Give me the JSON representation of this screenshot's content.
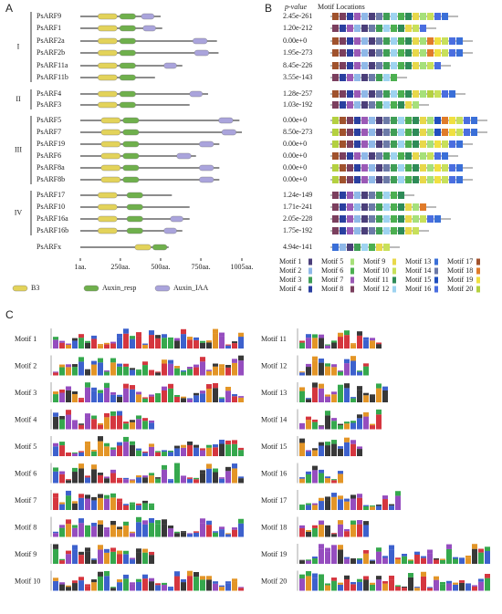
{
  "panel_a": {
    "label": "A",
    "groups": [
      {
        "label": "I",
        "genes": [
          {
            "name": "PsARF9",
            "length": 500,
            "domains": [
              [
                0,
                110,
                230
              ],
              [
                1,
                245,
                345
              ],
              [
                2,
                380,
                460
              ]
            ]
          },
          {
            "name": "PsARF1",
            "length": 510,
            "domains": [
              [
                0,
                110,
                230
              ],
              [
                1,
                245,
                345
              ],
              [
                2,
                390,
                470
              ]
            ]
          },
          {
            "name": "PsARF2a",
            "length": 850,
            "domains": [
              [
                0,
                110,
                230
              ],
              [
                1,
                245,
                345
              ],
              [
                2,
                700,
                790
              ]
            ]
          },
          {
            "name": "PsARF2b",
            "length": 860,
            "domains": [
              [
                0,
                110,
                230
              ],
              [
                1,
                245,
                345
              ],
              [
                2,
                710,
                800
              ]
            ]
          },
          {
            "name": "PsARF11a",
            "length": 635,
            "domains": [
              [
                0,
                110,
                230
              ],
              [
                1,
                245,
                345
              ],
              [
                2,
                520,
                600
              ]
            ]
          },
          {
            "name": "PsARF11b",
            "length": 465,
            "domains": [
              [
                0,
                110,
                230
              ],
              [
                1,
                245,
                345
              ]
            ]
          }
        ]
      },
      {
        "label": "II",
        "genes": [
          {
            "name": "PsARF4",
            "length": 795,
            "domains": [
              [
                0,
                110,
                230
              ],
              [
                1,
                245,
                345
              ],
              [
                2,
                680,
                760
              ]
            ]
          },
          {
            "name": "PsARF3",
            "length": 680,
            "domains": [
              [
                0,
                110,
                230
              ],
              [
                1,
                245,
                345
              ]
            ]
          }
        ]
      },
      {
        "label": "III",
        "genes": [
          {
            "name": "PsARF5",
            "length": 990,
            "domains": [
              [
                0,
                130,
                250
              ],
              [
                1,
                265,
                365
              ],
              [
                2,
                860,
                950
              ]
            ]
          },
          {
            "name": "PsARF7",
            "length": 1005,
            "domains": [
              [
                0,
                130,
                250
              ],
              [
                1,
                265,
                365
              ],
              [
                2,
                880,
                970
              ]
            ]
          },
          {
            "name": "PsARF19",
            "length": 865,
            "domains": [
              [
                0,
                130,
                250
              ],
              [
                1,
                265,
                365
              ],
              [
                2,
                740,
                830
              ]
            ]
          },
          {
            "name": "PsARF6",
            "length": 720,
            "domains": [
              [
                0,
                130,
                250
              ],
              [
                1,
                265,
                365
              ],
              [
                2,
                600,
                690
              ]
            ]
          },
          {
            "name": "PsARF8a",
            "length": 865,
            "domains": [
              [
                0,
                130,
                250
              ],
              [
                1,
                265,
                365
              ],
              [
                2,
                740,
                830
              ]
            ]
          },
          {
            "name": "PsARF8b",
            "length": 865,
            "domains": [
              [
                0,
                130,
                250
              ],
              [
                1,
                265,
                365
              ],
              [
                2,
                740,
                830
              ]
            ]
          }
        ]
      },
      {
        "label": "IV",
        "genes": [
          {
            "name": "PsARF17",
            "length": 570,
            "domains": [
              [
                0,
                110,
                230
              ],
              [
                1,
                290,
                390
              ]
            ]
          },
          {
            "name": "PsARF10",
            "length": 680,
            "domains": [
              [
                0,
                110,
                230
              ],
              [
                1,
                290,
                390
              ]
            ]
          },
          {
            "name": "PsARF16a",
            "length": 680,
            "domains": [
              [
                0,
                110,
                230
              ],
              [
                1,
                290,
                390
              ],
              [
                2,
                560,
                640
              ]
            ]
          },
          {
            "name": "PsARF16b",
            "length": 635,
            "domains": [
              [
                0,
                110,
                230
              ],
              [
                1,
                290,
                390
              ],
              [
                2,
                520,
                600
              ]
            ]
          }
        ]
      },
      {
        "genes": [
          {
            "name": "PsARFx",
            "length": 550,
            "domains": [
              [
                0,
                340,
                440
              ],
              [
                1,
                450,
                540
              ]
            ]
          }
        ]
      }
    ],
    "scale": [
      {
        "value": 1,
        "label": "1aa."
      },
      {
        "value": 250,
        "label": "250aa."
      },
      {
        "value": 500,
        "label": "500aa."
      },
      {
        "value": 750,
        "label": "750aa."
      },
      {
        "value": 1005,
        "label": "1005aa."
      }
    ],
    "legend": [
      {
        "name": "B3",
        "color": "#e3d35a"
      },
      {
        "name": "Auxin_resp",
        "color": "#6fb04c"
      },
      {
        "name": "Auxin_IAA",
        "color": "#aaa4dc"
      }
    ]
  },
  "panel_b": {
    "label": "B",
    "pvalue_header": "p-value",
    "header": "Motif Locations",
    "motifs": [
      {
        "name": "Motif 1",
        "color": "#4b3f7a"
      },
      {
        "name": "Motif 2",
        "color": "#8fb8e8"
      },
      {
        "name": "Motif 3",
        "color": "#3f9e55"
      },
      {
        "name": "Motif 4",
        "color": "#2a3fa0"
      },
      {
        "name": "Motif 5",
        "color": "#a6e07a"
      },
      {
        "name": "Motif 6",
        "color": "#4caf50"
      },
      {
        "name": "Motif 7",
        "color": "#9b59b6"
      },
      {
        "name": "Motif 8",
        "color": "#7b3f5e"
      },
      {
        "name": "Motif 9",
        "color": "#e8d84a"
      },
      {
        "name": "Motif 10",
        "color": "#c8e05a"
      },
      {
        "name": "Motif 11",
        "color": "#2e8b57"
      },
      {
        "name": "Motif 12",
        "color": "#9ed3f0"
      },
      {
        "name": "Motif 13",
        "color": "#3a6fd8"
      },
      {
        "name": "Motif 14",
        "color": "#6c7aa8"
      },
      {
        "name": "Motif 15",
        "color": "#1f4fbf"
      },
      {
        "name": "Motif 16",
        "color": "#4a6ee0"
      },
      {
        "name": "Motif 17",
        "color": "#a0522d"
      },
      {
        "name": "Motif 18",
        "color": "#e07b2a"
      },
      {
        "name": "Motif 19",
        "color": "#f0e040"
      },
      {
        "name": "Motif 20",
        "color": "#b4d040"
      }
    ],
    "rows": [
      {
        "pvalue": "2.45e-261",
        "motifs": [
          17,
          8,
          4,
          7,
          2,
          1,
          14,
          3,
          12,
          6,
          11,
          9,
          5,
          10,
          16,
          13
        ]
      },
      {
        "pvalue": "1.20e-212",
        "motifs": [
          8,
          4,
          7,
          2,
          1,
          14,
          3,
          12,
          6,
          11,
          9,
          10,
          16
        ]
      },
      {
        "pvalue": "0.00e+0",
        "motifs": [
          17,
          8,
          4,
          7,
          2,
          1,
          14,
          3,
          12,
          6,
          11,
          9,
          5,
          18,
          19,
          10,
          16,
          13
        ]
      },
      {
        "pvalue": "1.95e-273",
        "motifs": [
          17,
          8,
          4,
          7,
          2,
          1,
          14,
          3,
          12,
          6,
          11,
          9,
          5,
          18,
          19,
          10,
          16,
          13
        ]
      },
      {
        "pvalue": "8.45e-226",
        "motifs": [
          17,
          8,
          4,
          7,
          2,
          1,
          14,
          3,
          12,
          6,
          11,
          9,
          5,
          10,
          16
        ]
      },
      {
        "pvalue": "3.55e-143",
        "motifs": [
          8,
          4,
          7,
          2,
          1,
          14,
          3,
          12,
          6
        ]
      },
      {
        "pvalue": "1.28e-257",
        "motifs": [
          17,
          8,
          4,
          7,
          2,
          1,
          14,
          3,
          12,
          6,
          11,
          9,
          5,
          20,
          10,
          16,
          13
        ]
      },
      {
        "pvalue": "1.03e-192",
        "motifs": [
          8,
          4,
          7,
          2,
          1,
          14,
          3,
          12,
          6,
          11,
          9,
          5
        ]
      },
      {
        "pvalue": "0.00e+0",
        "motifs": [
          20,
          17,
          8,
          4,
          7,
          2,
          1,
          14,
          3,
          12,
          6,
          11,
          9,
          5,
          15,
          18,
          19,
          10,
          16,
          13
        ]
      },
      {
        "pvalue": "8.50e-273",
        "motifs": [
          20,
          17,
          8,
          4,
          7,
          2,
          1,
          14,
          3,
          12,
          6,
          11,
          9,
          5,
          15,
          18,
          19,
          10,
          16,
          13
        ]
      },
      {
        "pvalue": "0.00e+0",
        "motifs": [
          20,
          17,
          8,
          4,
          7,
          2,
          1,
          14,
          3,
          12,
          6,
          11,
          9,
          5,
          19,
          10,
          16,
          13
        ]
      },
      {
        "pvalue": "0.00e+0",
        "motifs": [
          17,
          8,
          4,
          7,
          2,
          1,
          14,
          3,
          12,
          6,
          11,
          9,
          5,
          10,
          16,
          13
        ]
      },
      {
        "pvalue": "0.00e+0",
        "motifs": [
          20,
          17,
          8,
          4,
          7,
          2,
          1,
          14,
          3,
          12,
          6,
          11,
          9,
          5,
          19,
          10,
          16,
          13
        ]
      },
      {
        "pvalue": "0.00e+0",
        "motifs": [
          20,
          17,
          8,
          4,
          7,
          2,
          1,
          14,
          3,
          12,
          6,
          11,
          9,
          5,
          19,
          10,
          16,
          13
        ]
      },
      {
        "pvalue": "1.24e-149",
        "motifs": [
          8,
          4,
          7,
          2,
          1,
          14,
          3,
          12,
          6,
          11
        ]
      },
      {
        "pvalue": "1.71e-241",
        "motifs": [
          8,
          4,
          7,
          2,
          1,
          14,
          3,
          12,
          6,
          11,
          9,
          5,
          18
        ]
      },
      {
        "pvalue": "2.05e-228",
        "motifs": [
          8,
          4,
          7,
          2,
          1,
          14,
          3,
          12,
          6,
          11,
          9,
          5,
          10,
          16,
          13
        ]
      },
      {
        "pvalue": "1.75e-192",
        "motifs": [
          8,
          4,
          7,
          2,
          1,
          14,
          3,
          12,
          6,
          11,
          9,
          10
        ]
      },
      {
        "pvalue": "4.94e-141",
        "motifs": [
          13,
          2,
          1,
          3,
          12,
          6,
          9,
          10
        ]
      }
    ]
  },
  "panel_c": {
    "label": "C"
  }
}
